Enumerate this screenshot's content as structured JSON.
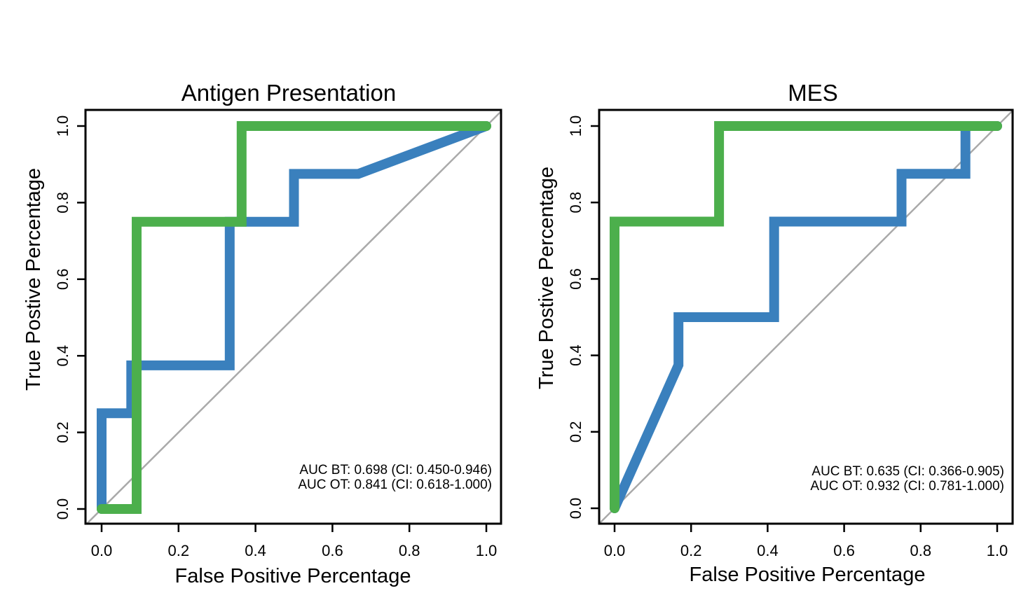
{
  "colors": {
    "bt": "#3a80bd",
    "ot": "#4caf4c",
    "diagonal": "#aaaaaa",
    "frame": "#000000"
  },
  "chart_data": [
    {
      "type": "line",
      "title": "Antigen Presentation",
      "xlabel": "False Positive Percentage",
      "ylabel": "True Postive Percentage",
      "xlim": [
        0,
        1
      ],
      "ylim": [
        0,
        1
      ],
      "xticks": [
        "0.0",
        "0.2",
        "0.4",
        "0.6",
        "0.8",
        "1.0"
      ],
      "yticks": [
        "0.0",
        "0.2",
        "0.4",
        "0.6",
        "0.8",
        "1.0"
      ],
      "series": [
        {
          "name": "BT",
          "color": "#3a80bd",
          "x": [
            0,
            0,
            0.077,
            0.077,
            0.333,
            0.333,
            0.5,
            0.5,
            0.667,
            1.0
          ],
          "y": [
            0,
            0.25,
            0.25,
            0.375,
            0.375,
            0.75,
            0.75,
            0.875,
            0.875,
            1.0
          ]
        },
        {
          "name": "OT",
          "color": "#4caf4c",
          "x": [
            0,
            0.091,
            0.091,
            0.364,
            0.364,
            1.0
          ],
          "y": [
            0,
            0,
            0.75,
            0.75,
            1.0,
            1.0
          ]
        }
      ],
      "annotations": [
        {
          "text": "AUC BT: 0.698 (CI: 0.450-0.946)",
          "color": "#3a80bd"
        },
        {
          "text": "AUC OT: 0.841 (CI: 0.618-1.000)",
          "color": "#4caf4c"
        }
      ]
    },
    {
      "type": "line",
      "title": "MES",
      "xlabel": "False Positive Percentage",
      "ylabel": "True Postive Percentage",
      "xlim": [
        0,
        1
      ],
      "ylim": [
        0,
        1
      ],
      "xticks": [
        "0.0",
        "0.2",
        "0.4",
        "0.6",
        "0.8",
        "1.0"
      ],
      "yticks": [
        "0.0",
        "0.2",
        "0.4",
        "0.6",
        "0.8",
        "1.0"
      ],
      "series": [
        {
          "name": "BT",
          "color": "#3a80bd",
          "x": [
            0,
            0.167,
            0.167,
            0.417,
            0.417,
            0.75,
            0.75,
            0.917,
            0.917,
            1.0
          ],
          "y": [
            0,
            0.375,
            0.5,
            0.5,
            0.75,
            0.75,
            0.875,
            0.875,
            1.0,
            1.0
          ]
        },
        {
          "name": "OT",
          "color": "#4caf4c",
          "x": [
            0,
            0,
            0.273,
            0.273,
            1.0
          ],
          "y": [
            0,
            0.75,
            0.75,
            1.0,
            1.0
          ]
        }
      ],
      "annotations": [
        {
          "text": "AUC BT: 0.635 (CI: 0.366-0.905)",
          "color": "#3a80bd"
        },
        {
          "text": "AUC OT: 0.932 (CI: 0.781-1.000)",
          "color": "#4caf4c"
        }
      ]
    }
  ]
}
